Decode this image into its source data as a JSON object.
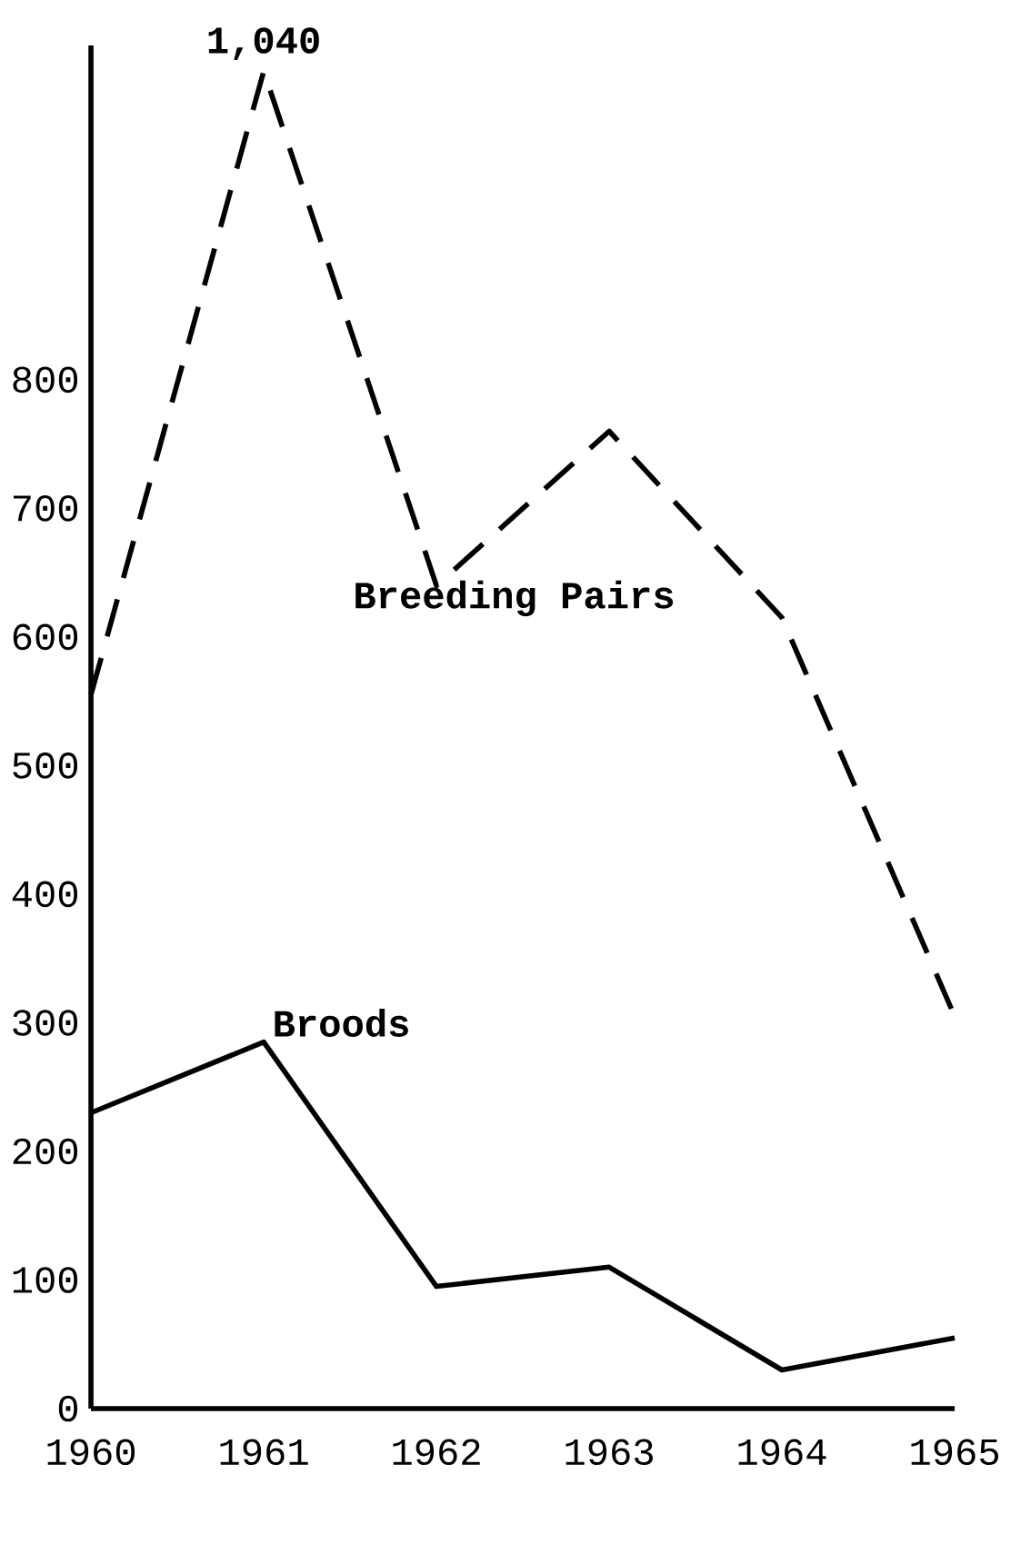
{
  "chart_data": {
    "type": "line",
    "x": [
      1960,
      1961,
      1962,
      1963,
      1964,
      1965
    ],
    "series": [
      {
        "name": "Breeding Pairs",
        "color": "#000000",
        "line_style": "dashed",
        "values": [
          555,
          1040,
          640,
          760,
          615,
          305
        ]
      },
      {
        "name": "Broods",
        "color": "#000000",
        "line_style": "solid",
        "values": [
          230,
          285,
          95,
          110,
          30,
          55
        ]
      }
    ],
    "xlim": [
      1960,
      1965
    ],
    "xticks": [
      1960,
      1961,
      1962,
      1963,
      1964,
      1965
    ],
    "ylim": [
      0,
      1060
    ],
    "yticks": [
      0,
      100,
      200,
      300,
      400,
      500,
      600,
      700,
      800
    ],
    "annotations": [
      {
        "text": "1,040",
        "x": 1961,
        "y": 1040
      }
    ]
  }
}
